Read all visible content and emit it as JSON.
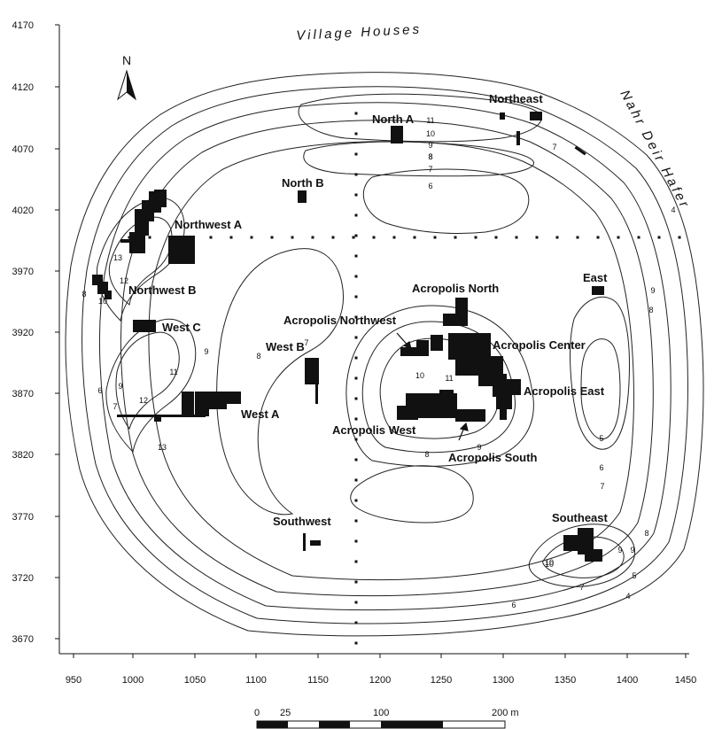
{
  "map": {
    "axes": {
      "x_ticks": [
        "950",
        "1000",
        "1050",
        "1100",
        "1150",
        "1200",
        "1250",
        "1300",
        "1350",
        "1400",
        "1450"
      ],
      "y_ticks": [
        "4170",
        "4120",
        "4070",
        "4020",
        "3970",
        "3920",
        "3870",
        "3820",
        "3770",
        "3720",
        "3670"
      ]
    },
    "north_arrow": {
      "label": "N"
    },
    "edge_labels": {
      "top": "Village Houses",
      "right": "Nahr Deir Hafer"
    },
    "areas": [
      "Northeast",
      "North A",
      "North B",
      "Northwest A",
      "Northwest B",
      "West C",
      "East",
      "Acropolis North",
      "Acropolis Northwest",
      "Acropolis Center",
      "West B",
      "Acropolis East",
      "West A",
      "Acropolis West",
      "Acropolis South",
      "Southwest",
      "Southeast"
    ],
    "contour_labels": [
      "11",
      "10",
      "9",
      "8",
      "7",
      "6",
      "4",
      "12",
      "13",
      "8",
      "10",
      "9",
      "8",
      "7",
      "11",
      "12",
      "13",
      "9",
      "6",
      "7",
      "8",
      "9",
      "10",
      "11",
      "10",
      "9",
      "8",
      "7",
      "5",
      "6",
      "7",
      "8",
      "9",
      "10",
      "7",
      "6",
      "5",
      "4",
      "8",
      "9"
    ],
    "scale_bar": {
      "labels": [
        "0",
        "25",
        "100",
        "200 m"
      ]
    }
  }
}
